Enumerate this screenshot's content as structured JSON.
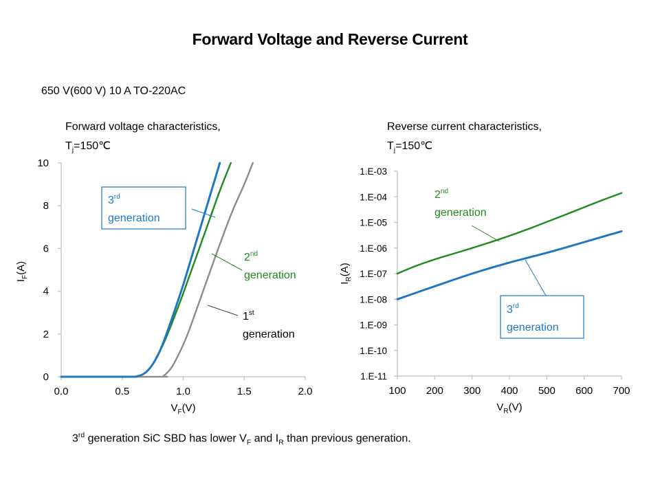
{
  "page": {
    "title": "Forward Voltage and Reverse Current",
    "subtitle": "650 V(600 V) 10 A  TO-220AC",
    "footer": {
      "prefix_num": "3",
      "prefix_sup": "rd",
      "text1": " generation SiC SBD has lower V",
      "sub1": "F",
      "text2": " and I",
      "sub2": "R",
      "text3": " than previous generation."
    }
  },
  "colors": {
    "gen3": "#1f77c4",
    "gen2": "#1e8a1e",
    "gen1": "#8c8c8c",
    "axis": "#bfbfbf",
    "leader": "#404040"
  },
  "chart_data": [
    {
      "type": "line",
      "heading_line1": "Forward voltage characteristics,",
      "heading_T": "T",
      "heading_T_sub": "j",
      "heading_value": "=150℃",
      "xlabel_main": "V",
      "xlabel_sub": "F",
      "xlabel_unit": "(V)",
      "ylabel_main": "I",
      "ylabel_sub": "F",
      "ylabel_unit": "(A)",
      "xlim": [
        0.0,
        2.0
      ],
      "ylim": [
        0,
        10
      ],
      "yscale": "linear",
      "grid": false,
      "x_ticks": [
        "0.0",
        "0.5",
        "1.0",
        "1.5",
        "2.0"
      ],
      "x_tick_values": [
        0.0,
        0.5,
        1.0,
        1.5,
        2.0
      ],
      "y_ticks": [
        "0",
        "2",
        "4",
        "6",
        "8",
        "10"
      ],
      "y_tick_values": [
        0,
        2,
        4,
        6,
        8,
        10
      ],
      "series": [
        {
          "name": "1st generation",
          "label_num": "1",
          "label_sup": "st",
          "label_text": "generation",
          "color_key": "gen1",
          "points": [
            [
              0.0,
              0
            ],
            [
              0.8,
              0
            ],
            [
              0.84,
              0.05
            ],
            [
              0.9,
              0.4
            ],
            [
              0.95,
              0.9
            ],
            [
              1.0,
              1.5
            ],
            [
              1.05,
              2.2
            ],
            [
              1.1,
              3.0
            ],
            [
              1.2,
              4.6
            ],
            [
              1.3,
              6.2
            ],
            [
              1.4,
              7.7
            ],
            [
              1.5,
              9.0
            ],
            [
              1.57,
              10
            ]
          ]
        },
        {
          "name": "2nd generation",
          "label_num": "2",
          "label_sup": "nd",
          "label_text": "generation",
          "color_key": "gen2",
          "points": [
            [
              0.0,
              0
            ],
            [
              0.55,
              0
            ],
            [
              0.62,
              0.02
            ],
            [
              0.68,
              0.15
            ],
            [
              0.74,
              0.5
            ],
            [
              0.8,
              1.1
            ],
            [
              0.85,
              1.7
            ],
            [
              0.9,
              2.4
            ],
            [
              1.0,
              3.9
            ],
            [
              1.1,
              5.5
            ],
            [
              1.2,
              7.1
            ],
            [
              1.3,
              8.7
            ],
            [
              1.39,
              10
            ]
          ]
        },
        {
          "name": "3rd generation",
          "label_num": "3",
          "label_sup": "rd",
          "label_text": "generation",
          "color_key": "gen3",
          "boxed": true,
          "points": [
            [
              0.0,
              0
            ],
            [
              0.55,
              0
            ],
            [
              0.62,
              0.02
            ],
            [
              0.68,
              0.15
            ],
            [
              0.74,
              0.5
            ],
            [
              0.8,
              1.1
            ],
            [
              0.85,
              1.8
            ],
            [
              0.9,
              2.6
            ],
            [
              1.0,
              4.3
            ],
            [
              1.1,
              6.2
            ],
            [
              1.2,
              8.1
            ],
            [
              1.3,
              10
            ]
          ]
        }
      ]
    },
    {
      "type": "line",
      "heading_line1": "Reverse current characteristics,",
      "heading_T": "T",
      "heading_T_sub": "j",
      "heading_value": "=150℃",
      "xlabel_main": "V",
      "xlabel_sub": "R",
      "xlabel_unit": "(V)",
      "ylabel_main": "I",
      "ylabel_sub": "R",
      "ylabel_unit": "(A)",
      "xlim": [
        100,
        700
      ],
      "ylim": [
        1e-11,
        0.001
      ],
      "yscale": "log",
      "grid": false,
      "x_ticks": [
        "100",
        "200",
        "300",
        "400",
        "500",
        "600",
        "700"
      ],
      "x_tick_values": [
        100,
        200,
        300,
        400,
        500,
        600,
        700
      ],
      "y_ticks": [
        "1.E-03",
        "1.E-04",
        "1.E-05",
        "1.E-06",
        "1.E-07",
        "1.E-08",
        "1.E-09",
        "1.E-10",
        "1.E-11"
      ],
      "y_tick_values": [
        0.001,
        0.0001,
        1e-05,
        1e-06,
        1e-07,
        1e-08,
        1e-09,
        1e-10,
        1e-11
      ],
      "series": [
        {
          "name": "2nd generation",
          "label_num": "2",
          "label_sup": "nd",
          "label_text": "generation",
          "color_key": "gen2",
          "points": [
            [
              100,
              1e-07
            ],
            [
              150,
              2e-07
            ],
            [
              200,
              3.6e-07
            ],
            [
              250,
              6e-07
            ],
            [
              300,
              1e-06
            ],
            [
              350,
              1.7e-06
            ],
            [
              400,
              3e-06
            ],
            [
              450,
              5.5e-06
            ],
            [
              500,
              1.05e-05
            ],
            [
              550,
              2e-05
            ],
            [
              600,
              3.9e-05
            ],
            [
              650,
              7.5e-05
            ],
            [
              700,
              0.00014
            ]
          ]
        },
        {
          "name": "3rd generation",
          "label_num": "3",
          "label_sup": "rd",
          "label_text": "generation",
          "color_key": "gen3",
          "boxed": true,
          "points": [
            [
              100,
              1e-08
            ],
            [
              200,
              3.2e-08
            ],
            [
              300,
              1e-07
            ],
            [
              400,
              2.7e-07
            ],
            [
              500,
              6.5e-07
            ],
            [
              600,
              1.7e-06
            ],
            [
              700,
              4.5e-06
            ]
          ]
        }
      ]
    }
  ]
}
